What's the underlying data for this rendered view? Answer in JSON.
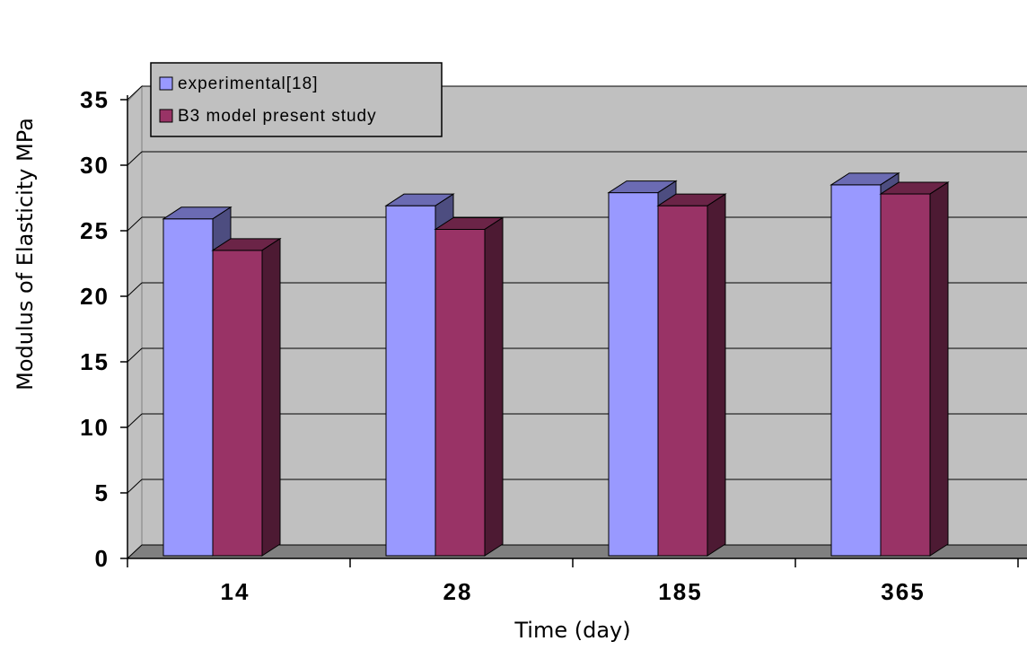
{
  "chart_data": {
    "type": "bar",
    "title": "",
    "xlabel": "Time (day)",
    "ylabel": "Modulus of Elasticity     MPa",
    "categories": [
      "14",
      "28",
      "185",
      "365"
    ],
    "ylim": [
      0,
      35
    ],
    "yticks": [
      "0",
      "5",
      "10",
      "15",
      "20",
      "25",
      "30",
      "35"
    ],
    "grid": true,
    "legend_position": "top-left",
    "series": [
      {
        "name": "experimental[18]",
        "values": [
          25.7,
          26.7,
          27.7,
          28.3
        ],
        "color": "#9999ff",
        "top_color": "#6b6bb3",
        "side_color": "#4d4d80"
      },
      {
        "name": "B3 model present study",
        "values": [
          23.3,
          24.9,
          26.7,
          27.6
        ],
        "color": "#993366",
        "top_color": "#6b2447",
        "side_color": "#4d1a33"
      }
    ],
    "colors": {
      "plot_background": "#c0c0c0",
      "floor": "#808080",
      "gridline": "#000000"
    }
  }
}
